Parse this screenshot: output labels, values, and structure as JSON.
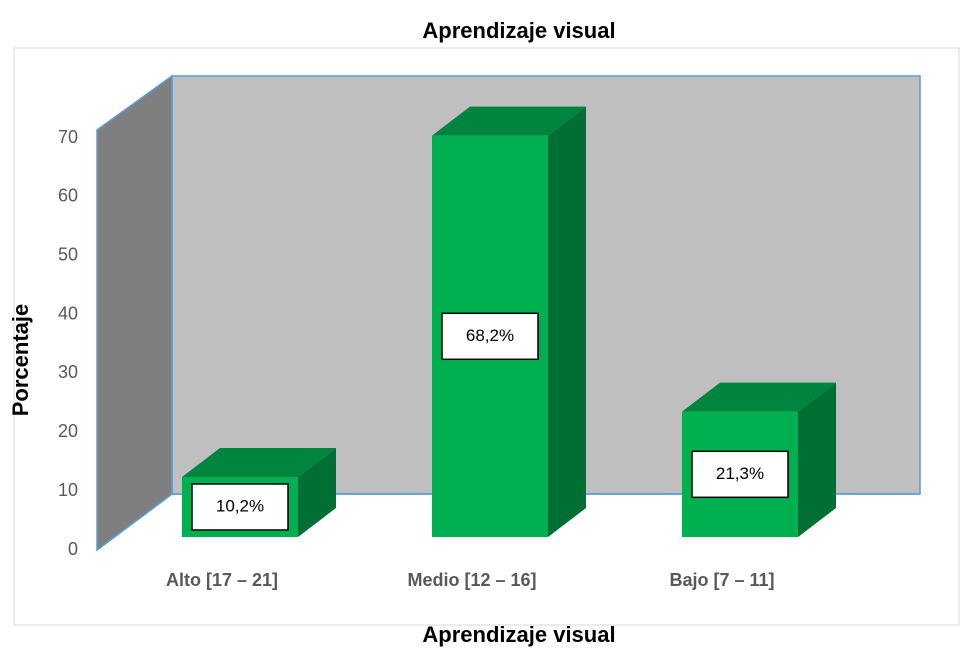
{
  "chart_data": {
    "type": "bar3d",
    "title": "Aprendizaje visual",
    "x_label": "Aprendizaje visual",
    "y_label": "Porcentaje",
    "categories": [
      "Alto [17 – 21]",
      "Medio [12 – 16]",
      "Bajo [7 – 11]"
    ],
    "values": [
      10.2,
      68.2,
      21.3
    ],
    "value_labels": [
      "10,2%",
      "68,2%",
      "21,3%"
    ],
    "color": "#00b050",
    "ylim": [
      0,
      70
    ],
    "yticks": [
      0,
      10,
      20,
      30,
      40,
      50,
      60,
      70
    ]
  }
}
